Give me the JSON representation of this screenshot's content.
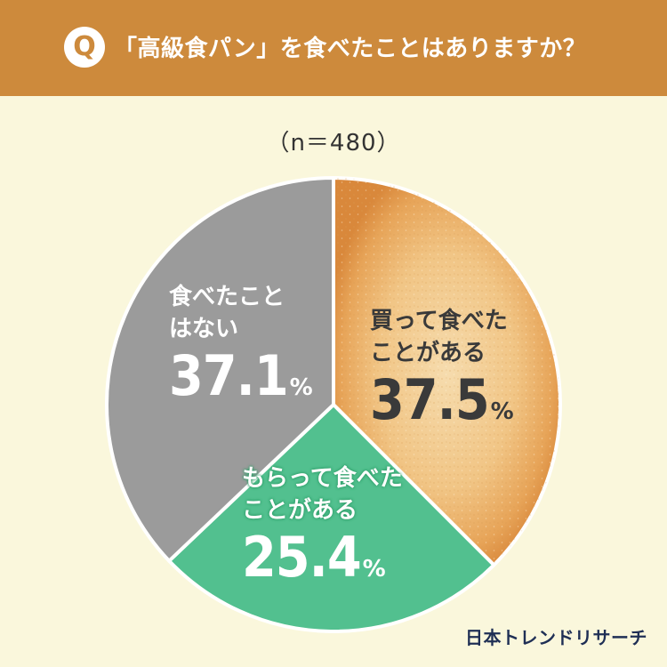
{
  "question": {
    "badge": "Q",
    "text": "「高級食パン」を食べたことはありますか？"
  },
  "sample_size": "（n＝480）",
  "chart_data": {
    "type": "pie",
    "start": "top",
    "direction": "clockwise",
    "slices": [
      {
        "label_line1": "買って食べた",
        "label_line2": "ことがある",
        "value": 37.5,
        "value_text": "37.5",
        "unit": "%",
        "color": "#f0b36a",
        "fill": "bread-texture"
      },
      {
        "label_line1": "もらって食べた",
        "label_line2": "ことがある",
        "value": 25.4,
        "value_text": "25.4",
        "unit": "%",
        "color": "#52c08f"
      },
      {
        "label_line1": "食べたこと",
        "label_line2": "はない",
        "value": 37.1,
        "value_text": "37.1",
        "unit": "%",
        "color": "#9b9b9b"
      }
    ]
  },
  "brand": "日本トレンドリサーチ",
  "colors": {
    "header": "#cd8a3c",
    "background": "#faf7dc",
    "brand": "#1f2f55"
  }
}
